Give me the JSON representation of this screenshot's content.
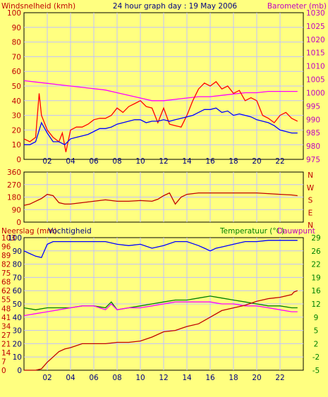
{
  "chart_data": [
    {
      "type": "line",
      "title": "24 hour graph day : 19 May 2006",
      "ylabel_left": "Windsnelheid (kmh)",
      "ylabel_right": "Barometer (mb)",
      "ylim_left": [
        0,
        100
      ],
      "ylim_right": [
        975,
        1030
      ],
      "left_ticks": [
        "0",
        "10",
        "20",
        "30",
        "40",
        "50",
        "60",
        "70",
        "80",
        "90",
        "100"
      ],
      "right_ticks": [
        "975",
        "980",
        "985",
        "990",
        "995",
        "1000",
        "1005",
        "1010",
        "1015",
        "1020",
        "1025",
        "1030"
      ],
      "x_ticks": [
        "02",
        "04",
        "06",
        "08",
        "10",
        "12",
        "14",
        "16",
        "18",
        "20",
        "22"
      ],
      "x_range_hours": [
        0,
        24
      ],
      "grid": true,
      "series": [
        {
          "color": "#ff0000",
          "axis": "left",
          "x": [
            0,
            0.5,
            1,
            1.3,
            1.5,
            2,
            2.5,
            3,
            3.3,
            3.6,
            4,
            4.5,
            5,
            5.5,
            6,
            6.5,
            7,
            7.5,
            8,
            8.5,
            9,
            9.5,
            10,
            10.5,
            11,
            11.5,
            12,
            12.5,
            13,
            13.5,
            14,
            14.5,
            15,
            15.5,
            16,
            16.5,
            17,
            17.5,
            18,
            18.5,
            19,
            19.5,
            20,
            20.5,
            21,
            21.5,
            22,
            22.5,
            23,
            23.5
          ],
          "values": [
            14,
            12,
            15,
            45,
            30,
            20,
            15,
            12,
            18,
            5,
            20,
            22,
            22,
            24,
            27,
            28,
            28,
            30,
            35,
            32,
            36,
            38,
            40,
            36,
            35,
            25,
            35,
            24,
            23,
            22,
            30,
            40,
            48,
            52,
            50,
            53,
            48,
            50,
            45,
            47,
            40,
            42,
            40,
            30,
            28,
            25,
            30,
            32,
            28,
            26
          ]
        },
        {
          "color": "#0000ff",
          "axis": "left",
          "x": [
            0,
            0.5,
            1,
            1.5,
            2,
            2.5,
            3,
            3.5,
            4,
            4.5,
            5,
            5.5,
            6,
            6.5,
            7,
            7.5,
            8,
            8.5,
            9,
            9.5,
            10,
            10.5,
            11,
            11.5,
            12,
            12.5,
            13,
            13.5,
            14,
            14.5,
            15,
            15.5,
            16,
            16.5,
            17,
            17.5,
            18,
            18.5,
            19,
            19.5,
            20,
            20.5,
            21,
            21.5,
            22,
            22.5,
            23,
            23.5
          ],
          "values": [
            10,
            10,
            12,
            25,
            18,
            12,
            12,
            10,
            14,
            15,
            16,
            17,
            19,
            21,
            21,
            22,
            24,
            25,
            26,
            27,
            27,
            25,
            26,
            26,
            27,
            26,
            27,
            28,
            29,
            30,
            32,
            34,
            34,
            35,
            32,
            33,
            30,
            31,
            30,
            29,
            27,
            26,
            25,
            23,
            20,
            19,
            18,
            18
          ]
        },
        {
          "color": "#ff00ff",
          "axis": "right",
          "x": [
            0,
            1,
            2,
            3,
            4,
            5,
            6,
            7,
            8,
            9,
            10,
            11,
            12,
            13,
            14,
            15,
            16,
            17,
            18,
            19,
            20,
            21,
            22,
            23,
            23.5
          ],
          "values": [
            1004.5,
            1004,
            1003.5,
            1003,
            1002.5,
            1002,
            1001.5,
            1001,
            1000,
            999,
            998,
            997,
            997,
            997.5,
            998,
            998.5,
            998.5,
            999,
            999.5,
            1000,
            1000,
            1000.5,
            1000.5,
            1000.5,
            1000.5
          ]
        }
      ]
    },
    {
      "type": "line",
      "labels_right": [
        "N",
        "W",
        "S",
        "E",
        "N"
      ],
      "ylim": [
        0,
        360
      ],
      "ticks": [
        "0",
        "90",
        "180",
        "270",
        "360"
      ],
      "x_ticks": [
        "02",
        "04",
        "06",
        "08",
        "10",
        "12",
        "14",
        "16",
        "18",
        "20",
        "22"
      ],
      "grid": true,
      "series": [
        {
          "color": "#c00000",
          "x": [
            0,
            0.5,
            1,
            1.5,
            2,
            2.5,
            3,
            3.5,
            4,
            5,
            6,
            7,
            8,
            9,
            10,
            11,
            11.5,
            12,
            12.5,
            13,
            13.5,
            14,
            15,
            16,
            17,
            18,
            19,
            20,
            21,
            22,
            23,
            23.5
          ],
          "values": [
            120,
            130,
            150,
            170,
            200,
            190,
            140,
            130,
            130,
            140,
            150,
            160,
            150,
            150,
            155,
            150,
            165,
            190,
            210,
            130,
            180,
            200,
            210,
            210,
            210,
            210,
            210,
            210,
            205,
            200,
            195,
            190
          ]
        }
      ]
    },
    {
      "type": "line",
      "ylabel_left": "Neerslag (mm)",
      "ylabel_left2": "Vochtigheid",
      "ylabel_right": "Temperatuur (°C)",
      "ylabel_right2": "Dauwpunt",
      "left_ticks_outer": [
        "0",
        "7",
        "14",
        "21",
        "27",
        "34",
        "41",
        "48",
        "55",
        "62",
        "68",
        "75",
        "82",
        "89",
        "96",
        "103"
      ],
      "left_ticks_inner": [
        "0",
        "10",
        "20",
        "30",
        "40",
        "50",
        "60",
        "70",
        "80",
        "90",
        "100"
      ],
      "right_ticks": [
        "-5",
        "-2",
        "2",
        "5",
        "9",
        "12",
        "16",
        "19",
        "22",
        "26",
        "29"
      ],
      "ylim_left": [
        0,
        100
      ],
      "ylim_right": [
        -5,
        29
      ],
      "x_ticks": [
        "02",
        "04",
        "06",
        "08",
        "10",
        "12",
        "14",
        "16",
        "18",
        "20",
        "22"
      ],
      "grid": true,
      "series": [
        {
          "color": "#0000ff",
          "axis": "left",
          "x": [
            0,
            0.5,
            1,
            1.5,
            2,
            2.5,
            3,
            4,
            5,
            6,
            7,
            8,
            9,
            10,
            11,
            12,
            13,
            14,
            15,
            15.5,
            16,
            16.5,
            17,
            18,
            19,
            20,
            21,
            22,
            23,
            23.5
          ],
          "values": [
            90,
            88,
            86,
            85,
            95,
            97,
            97,
            97,
            97,
            97,
            97,
            95,
            94,
            95,
            92,
            94,
            97,
            97,
            94,
            92,
            90,
            92,
            93,
            95,
            97,
            97,
            98,
            98,
            98,
            98
          ]
        },
        {
          "color": "#ff00ff",
          "axis": "right",
          "x": [
            0,
            1,
            2,
            3,
            4,
            5,
            6,
            7,
            7.5,
            8,
            9,
            10,
            11,
            12,
            13,
            14,
            15,
            16,
            17,
            18,
            19,
            20,
            21,
            22,
            23,
            23.5
          ],
          "values": [
            9,
            9.5,
            10,
            10.5,
            11,
            11.5,
            11.5,
            10.5,
            12,
            10.5,
            11,
            11,
            11.5,
            12,
            12.5,
            12.5,
            12.5,
            12.5,
            12,
            12,
            11.5,
            11.5,
            11,
            10.5,
            10,
            10
          ]
        },
        {
          "color": "#008000",
          "axis": "right",
          "x": [
            0,
            1,
            2,
            3,
            4,
            5,
            6,
            7,
            7.5,
            8,
            9,
            10,
            11,
            12,
            13,
            14,
            15,
            16,
            17,
            18,
            19,
            20,
            21,
            22,
            23,
            23.5
          ],
          "values": [
            11,
            10.5,
            11,
            11,
            11,
            11.5,
            11.5,
            11,
            12.5,
            10.5,
            11,
            11.5,
            12,
            12.5,
            13,
            13,
            13.5,
            14,
            13.5,
            13,
            12.5,
            12,
            11.5,
            11.5,
            11,
            11
          ]
        },
        {
          "color": "#c00000",
          "axis": "left",
          "x": [
            0,
            0.5,
            1,
            1.5,
            2,
            2.5,
            3,
            3.5,
            4,
            5,
            6,
            7,
            8,
            9,
            10,
            11,
            12,
            13,
            14,
            15,
            16,
            17,
            18,
            19,
            20,
            21,
            22,
            23,
            23.2,
            23.5
          ],
          "values": [
            0,
            0,
            0,
            1,
            6,
            10,
            14,
            16,
            17,
            20,
            20,
            20,
            21,
            21,
            22,
            25,
            29,
            30,
            33,
            35,
            40,
            45,
            47,
            49,
            52,
            54,
            55,
            57,
            59,
            60
          ]
        }
      ]
    }
  ]
}
